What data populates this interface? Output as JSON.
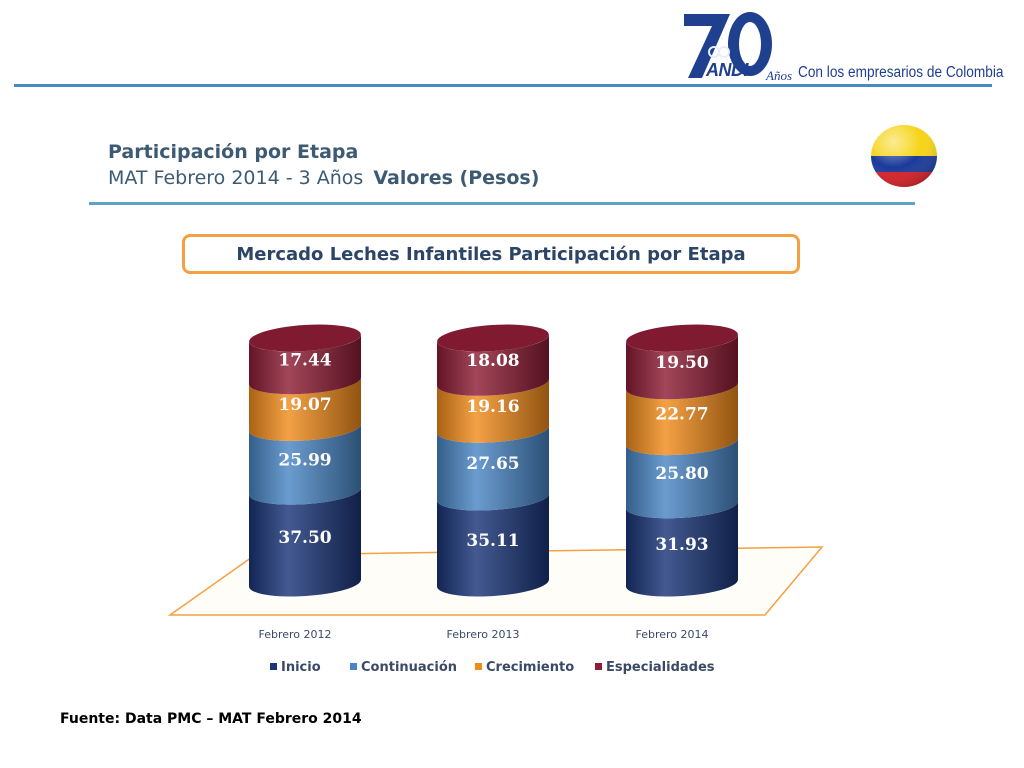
{
  "header": {
    "logo_number": "70",
    "logo_word": "ANDI",
    "logo_anos": "Años",
    "logo_tagline": "Con los empresarios de Colombia",
    "brand_color": "#1f3f8f"
  },
  "slide": {
    "title": "Participación por Etapa",
    "subtitle": "MAT Febrero 2014 - 3 Años",
    "subtitle_bold": "Valores (Pesos)",
    "flag_icon": "colombia-flag-icon",
    "source": "Fuente: Data PMC – MAT Febrero 2014"
  },
  "chart_data": {
    "type": "bar",
    "stacked": true,
    "style": "3d-cylinder",
    "title": "Mercado Leches Infantiles Participación por Etapa",
    "categories": [
      "Febrero 2012",
      "Febrero 2013",
      "Febrero 2014"
    ],
    "series": [
      {
        "name": "Inicio",
        "color": "#1a3578",
        "values": [
          37.5,
          35.11,
          31.93
        ]
      },
      {
        "name": "Continuación",
        "color": "#4a86c5",
        "values": [
          25.99,
          27.65,
          25.8
        ]
      },
      {
        "name": "Crecimiento",
        "color": "#f28c1c",
        "values": [
          19.07,
          19.16,
          22.77
        ]
      },
      {
        "name": "Especialidades",
        "color": "#8e1d35",
        "values": [
          17.44,
          18.08,
          19.5
        ]
      }
    ],
    "value_labels": [
      [
        "37.50",
        "35.11",
        "31.93"
      ],
      [
        "25.99",
        "27.65",
        "25.80"
      ],
      [
        "19.07",
        "19.16",
        "22.77"
      ],
      [
        "17.44",
        "18.08",
        "19.50"
      ]
    ],
    "ylim": [
      0,
      100
    ],
    "legend_position": "bottom",
    "floor_color": "#f4a043"
  }
}
